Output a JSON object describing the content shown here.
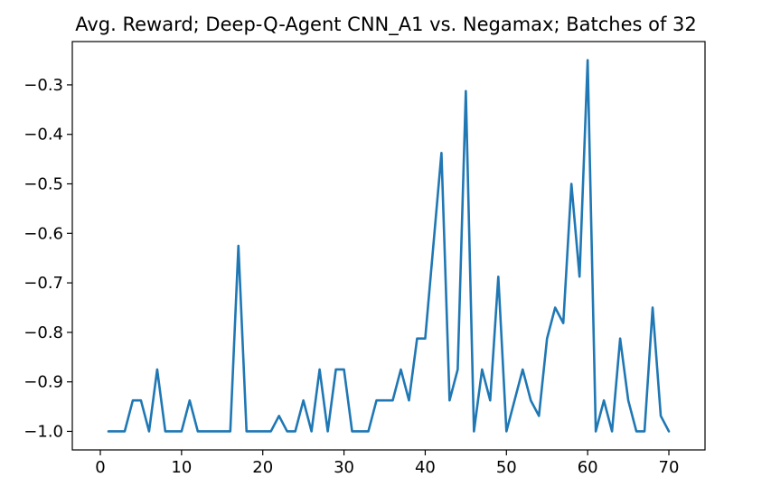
{
  "chart_data": {
    "type": "line",
    "title": "Avg. Reward; Deep-Q-Agent CNN_A1 vs. Negamax; Batches of 32",
    "xlabel": "",
    "ylabel": "",
    "xlim": [
      -3.45,
      74.45
    ],
    "ylim": [
      -1.0375,
      -0.2125
    ],
    "xticks": [
      0,
      10,
      20,
      30,
      40,
      50,
      60,
      70
    ],
    "xtick_labels": [
      "0",
      "10",
      "20",
      "30",
      "40",
      "50",
      "60",
      "70"
    ],
    "yticks": [
      -1.0,
      -0.9,
      -0.8,
      -0.7,
      -0.6,
      -0.5,
      -0.4,
      -0.3
    ],
    "ytick_labels": [
      "−1.0",
      "−0.9",
      "−0.8",
      "−0.7",
      "−0.6",
      "−0.5",
      "−0.4",
      "−0.3"
    ],
    "grid": false,
    "series": [
      {
        "color": "#1f77b4",
        "x": [
          1,
          2,
          3,
          4,
          5,
          6,
          7,
          8,
          9,
          10,
          11,
          12,
          13,
          14,
          15,
          16,
          17,
          18,
          19,
          20,
          21,
          22,
          23,
          24,
          25,
          26,
          27,
          28,
          29,
          30,
          31,
          32,
          33,
          34,
          35,
          36,
          37,
          38,
          39,
          40,
          41,
          42,
          43,
          44,
          45,
          46,
          47,
          48,
          49,
          50,
          51,
          52,
          53,
          54,
          55,
          56,
          57,
          58,
          59,
          60,
          61,
          62,
          63,
          64,
          65,
          66,
          67,
          68,
          69,
          70
        ],
        "values": [
          -1.0,
          -1.0,
          -1.0,
          -0.9375,
          -0.9375,
          -1.0,
          -0.875,
          -1.0,
          -1.0,
          -1.0,
          -0.9375,
          -1.0,
          -1.0,
          -1.0,
          -1.0,
          -1.0,
          -0.625,
          -1.0,
          -1.0,
          -1.0,
          -1.0,
          -0.96875,
          -1.0,
          -1.0,
          -0.9375,
          -1.0,
          -0.875,
          -1.0,
          -0.875,
          -0.875,
          -1.0,
          -1.0,
          -1.0,
          -0.9375,
          -0.9375,
          -0.9375,
          -0.875,
          -0.9375,
          -0.8125,
          -0.8125,
          -0.625,
          -0.4375,
          -0.9375,
          -0.875,
          -0.3125,
          -1.0,
          -0.875,
          -0.9375,
          -0.6875,
          -1.0,
          -0.9375,
          -0.875,
          -0.9375,
          -0.96875,
          -0.8125,
          -0.75,
          -0.78125,
          -0.5,
          -0.6875,
          -0.25,
          -1.0,
          -0.9375,
          -1.0,
          -0.8125,
          -0.9375,
          -1.0,
          -1.0,
          -0.75,
          -0.96875,
          -1.0
        ]
      }
    ]
  }
}
